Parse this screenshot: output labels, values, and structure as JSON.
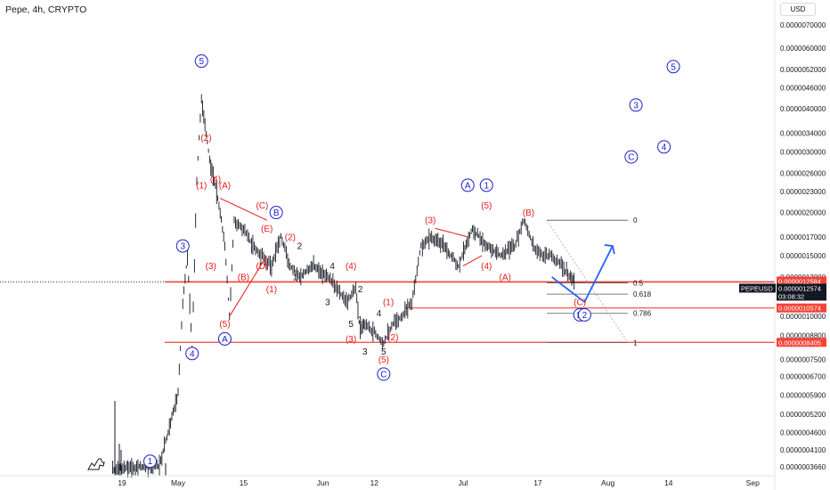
{
  "header": {
    "title": "Pepe, 4h, CRYPTO",
    "currency_button": "USD"
  },
  "icons": [
    "tradingview-logo-icon"
  ],
  "colors": {
    "candle": "#131722",
    "wave_red": "#e8191a",
    "wave_blue": "#1a20c8",
    "level_line": "#f44336",
    "arrow": "#2962ff",
    "price_label_red": "#f44336",
    "price_label_black": "#131722"
  },
  "chart_data": {
    "type": "candlestick",
    "symbol": "PEPEUSD",
    "price_scale": "log",
    "y_ticks": [
      "0.0000070000",
      "0.0000060000",
      "0.0000052000",
      "0.0000046000",
      "0.0000040000",
      "0.0000034000",
      "0.0000030000",
      "0.0000026000",
      "0.0000023000",
      "0.0000020000",
      "0.0000017000",
      "0.0000015000",
      "0.0000013000",
      "0.0000011500",
      "0.0000010000",
      "0.0000008800",
      "0.0000007500",
      "0.0000006700",
      "0.0000005900",
      "0.0000005200",
      "0.0000004600",
      "0.0000004100",
      "0.0000003660"
    ],
    "x_ticks": [
      "19",
      "May",
      "15",
      "Jun",
      "12",
      "Jul",
      "17",
      "Aug",
      "14",
      "Sep"
    ],
    "price_labels": [
      {
        "text": "0.0000012584",
        "style": "red"
      },
      {
        "text": "PEPEUSD",
        "style": "black"
      },
      {
        "text": "0.0000012574",
        "style": "black"
      },
      {
        "text": "03:08:32",
        "style": "black"
      },
      {
        "text": "0.0000010574",
        "style": "red"
      },
      {
        "text": "0.0000008405",
        "style": "red"
      }
    ],
    "fib_levels": [
      {
        "label": "0",
        "price": 1.9e-06
      },
      {
        "label": "0.5",
        "price": 1.25e-06
      },
      {
        "label": "0.618",
        "price": 1.16e-06
      },
      {
        "label": "0.786",
        "price": 1.02e-06
      },
      {
        "label": "1",
        "price": 8.4e-07
      }
    ],
    "horizontal_levels": [
      1.2584e-06,
      1.0574e-06,
      8.405e-07
    ],
    "series": [
      {
        "name": "PEPEUSD",
        "points": [
          {
            "t": "Apr 17",
            "c": 3.6e-07
          },
          {
            "t": "Apr 27",
            "c": 3.7e-07
          },
          {
            "t": "May 1",
            "c": 6e-07
          },
          {
            "t": "May 2",
            "c": 1.1e-06
          },
          {
            "t": "May 3",
            "c": 1.5e-06
          },
          {
            "t": "May 4",
            "c": 8e-07
          },
          {
            "t": "May 5",
            "c": 2.5e-06
          },
          {
            "t": "May 6",
            "c": 4.3e-06
          },
          {
            "t": "May 7",
            "c": 3.4e-06
          },
          {
            "t": "May 8",
            "c": 2.7e-06
          },
          {
            "t": "May 9",
            "c": 2.4e-06
          },
          {
            "t": "May 10",
            "c": 2e-06
          },
          {
            "t": "May 11",
            "c": 1.6e-06
          },
          {
            "t": "May 12",
            "c": 1e-06
          },
          {
            "t": "May 13",
            "c": 1.9e-06
          },
          {
            "t": "May 15",
            "c": 1.8e-06
          },
          {
            "t": "May 17",
            "c": 1.6e-06
          },
          {
            "t": "May 19",
            "c": 1.5e-06
          },
          {
            "t": "May 21",
            "c": 1.4e-06
          },
          {
            "t": "May 23",
            "c": 1.7e-06
          },
          {
            "t": "May 25",
            "c": 1.4e-06
          },
          {
            "t": "May 27",
            "c": 1.3e-06
          },
          {
            "t": "May 30",
            "c": 1.4e-06
          },
          {
            "t": "Jun 2",
            "c": 1.3e-06
          },
          {
            "t": "Jun 4",
            "c": 1.2e-06
          },
          {
            "t": "Jun 6",
            "c": 1.1e-06
          },
          {
            "t": "Jun 8",
            "c": 1.2e-06
          },
          {
            "t": "Jun 9",
            "c": 9e-07
          },
          {
            "t": "Jun 10",
            "c": 9.5e-07
          },
          {
            "t": "Jun 12",
            "c": 9e-07
          },
          {
            "t": "Jun 14",
            "c": 8.4e-07
          },
          {
            "t": "Jun 16",
            "c": 9.5e-07
          },
          {
            "t": "Jun 18",
            "c": 1e-06
          },
          {
            "t": "Jun 20",
            "c": 1.1e-06
          },
          {
            "t": "Jun 22",
            "c": 1.6e-06
          },
          {
            "t": "Jun 24",
            "c": 1.7e-06
          },
          {
            "t": "Jun 27",
            "c": 1.6e-06
          },
          {
            "t": "Jun 30",
            "c": 1.4e-06
          },
          {
            "t": "Jul 3",
            "c": 1.8e-06
          },
          {
            "t": "Jul 6",
            "c": 1.6e-06
          },
          {
            "t": "Jul 9",
            "c": 1.5e-06
          },
          {
            "t": "Jul 12",
            "c": 1.6e-06
          },
          {
            "t": "Jul 14",
            "c": 1.9e-06
          },
          {
            "t": "Jul 16",
            "c": 1.6e-06
          },
          {
            "t": "Jul 18",
            "c": 1.5e-06
          },
          {
            "t": "Jul 20",
            "c": 1.5e-06
          },
          {
            "t": "Jul 22",
            "c": 1.4e-06
          },
          {
            "t": "Jul 24",
            "c": 1.3e-06
          },
          {
            "t": "Jul 25",
            "c": 1.2574e-06
          }
        ]
      }
    ],
    "annotations": [
      {
        "text": "1",
        "t": "Apr 25",
        "p": 3.8e-07,
        "color": "blue",
        "circle": true
      },
      {
        "text": "3",
        "t": "May 2",
        "p": 1.6e-06,
        "color": "blue",
        "circle": true
      },
      {
        "text": "4",
        "t": "May 4",
        "p": 7.8e-07,
        "color": "blue",
        "circle": true
      },
      {
        "text": "5",
        "t": "May 6",
        "p": 5.5e-06,
        "color": "blue",
        "circle": true
      },
      {
        "text": "(2)",
        "t": "May 7",
        "p": 3.3e-06,
        "color": "red"
      },
      {
        "text": "(1)",
        "t": "May 6",
        "p": 2.4e-06,
        "color": "red"
      },
      {
        "text": "(4)",
        "t": "May 9",
        "p": 2.5e-06,
        "color": "red"
      },
      {
        "text": "(3)",
        "t": "May 8",
        "p": 1.4e-06,
        "color": "red"
      },
      {
        "text": "(A)",
        "t": "May 11",
        "p": 2.4e-06,
        "color": "red"
      },
      {
        "text": "(5)",
        "t": "May 11",
        "p": 9.5e-07,
        "color": "red"
      },
      {
        "text": "A",
        "t": "May 11",
        "p": 8.6e-07,
        "color": "blue",
        "circle": true
      },
      {
        "text": "(B)",
        "t": "May 15",
        "p": 1.3e-06,
        "color": "red"
      },
      {
        "text": "(C)",
        "t": "May 19",
        "p": 2.1e-06,
        "color": "red"
      },
      {
        "text": "B",
        "t": "May 22",
        "p": 2e-06,
        "color": "blue",
        "circle": true
      },
      {
        "text": "(E)",
        "t": "May 20",
        "p": 1.8e-06,
        "color": "red"
      },
      {
        "text": "(D)",
        "t": "May 19",
        "p": 1.4e-06,
        "color": "red"
      },
      {
        "text": "(1)",
        "t": "May 21",
        "p": 1.2e-06,
        "color": "red"
      },
      {
        "text": "(2)",
        "t": "May 25",
        "p": 1.7e-06,
        "color": "red"
      },
      {
        "text": "2",
        "t": "May 27",
        "p": 1.6e-06,
        "color": "black"
      },
      {
        "text": "1",
        "t": "May 26",
        "p": 1.3e-06,
        "color": "black"
      },
      {
        "text": "3",
        "t": "Jun 2",
        "p": 1.1e-06,
        "color": "black"
      },
      {
        "text": "4",
        "t": "Jun 3",
        "p": 1.4e-06,
        "color": "black"
      },
      {
        "text": "(4)",
        "t": "Jun 7",
        "p": 1.4e-06,
        "color": "red"
      },
      {
        "text": "2",
        "t": "Jun 9",
        "p": 1.2e-06,
        "color": "black"
      },
      {
        "text": "5",
        "t": "Jun 7",
        "p": 9.5e-07,
        "color": "black"
      },
      {
        "text": "1",
        "t": "Jun 9",
        "p": 9.8e-07,
        "color": "black"
      },
      {
        "text": "(3)",
        "t": "Jun 7",
        "p": 8.6e-07,
        "color": "red"
      },
      {
        "text": "3",
        "t": "Jun 10",
        "p": 7.9e-07,
        "color": "black"
      },
      {
        "text": "4",
        "t": "Jun 13",
        "p": 1.02e-06,
        "color": "black"
      },
      {
        "text": "(1)",
        "t": "Jun 15",
        "p": 1.1e-06,
        "color": "red"
      },
      {
        "text": "5",
        "t": "Jun 14",
        "p": 7.9e-07,
        "color": "black"
      },
      {
        "text": "(5)",
        "t": "Jun 14",
        "p": 7.5e-07,
        "color": "red"
      },
      {
        "text": "C",
        "t": "Jun 14",
        "p": 6.8e-07,
        "color": "blue",
        "circle": true
      },
      {
        "text": "(2)",
        "t": "Jun 16",
        "p": 8.7e-07,
        "color": "red"
      },
      {
        "text": "(3)",
        "t": "Jun 24",
        "p": 1.9e-06,
        "color": "red"
      },
      {
        "text": "A",
        "t": "Jul 2",
        "p": 2.4e-06,
        "color": "blue",
        "circle": true
      },
      {
        "text": "1",
        "t": "Jul 6",
        "p": 2.4e-06,
        "color": "blue",
        "circle": true
      },
      {
        "text": "(5)",
        "t": "Jul 6",
        "p": 2.1e-06,
        "color": "red"
      },
      {
        "text": "(4)",
        "t": "Jul 6",
        "p": 1.4e-06,
        "color": "red"
      },
      {
        "text": "(A)",
        "t": "Jul 10",
        "p": 1.3e-06,
        "color": "red"
      },
      {
        "text": "(B)",
        "t": "Jul 15",
        "p": 2e-06,
        "color": "red"
      },
      {
        "text": "(C)",
        "t": "Jul 26",
        "p": 1.1e-06,
        "color": "red"
      },
      {
        "text": "B",
        "t": "Jul 26",
        "p": 1.01e-06,
        "color": "blue",
        "circle": true
      },
      {
        "text": "2",
        "t": "Jul 27",
        "p": 1.01e-06,
        "color": "blue",
        "circle": true
      },
      {
        "text": "C",
        "t": "Aug 6",
        "p": 2.9e-06,
        "color": "blue",
        "circle": true
      },
      {
        "text": "3",
        "t": "Aug 7",
        "p": 4.1e-06,
        "color": "blue",
        "circle": true
      },
      {
        "text": "4",
        "t": "Aug 13",
        "p": 3.1e-06,
        "color": "blue",
        "circle": true
      },
      {
        "text": "5",
        "t": "Aug 15",
        "p": 5.3e-06,
        "color": "blue",
        "circle": true
      }
    ]
  }
}
